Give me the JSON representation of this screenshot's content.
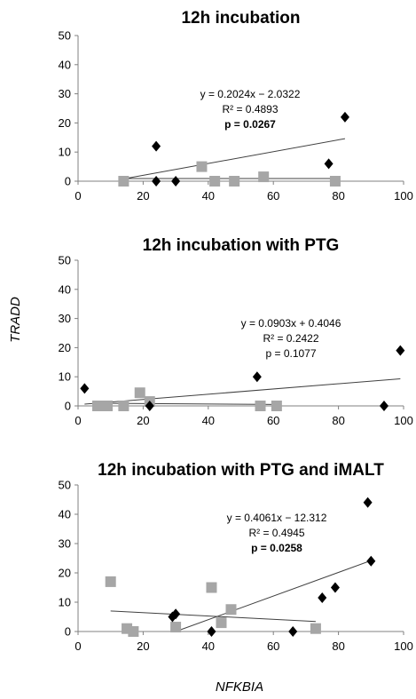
{
  "y_axis_label": "TRADD",
  "x_axis_label": "NFKBIA",
  "colors": {
    "black_series": "#000000",
    "gray_series": "#a6a6a6",
    "trendline": "#404040"
  },
  "chart_data": [
    {
      "type": "scatter",
      "title": "12h incubation",
      "xlim": [
        0,
        100
      ],
      "ylim": [
        0,
        50
      ],
      "xticks": [
        "0",
        "20",
        "40",
        "60",
        "80",
        "100"
      ],
      "yticks": [
        "0",
        "10",
        "20",
        "30",
        "40",
        "50"
      ],
      "series": [
        {
          "marker": "diamond",
          "color": "#000000",
          "x": [
            24,
            24,
            30,
            77,
            82
          ],
          "y": [
            12,
            0,
            0,
            6,
            22
          ]
        },
        {
          "marker": "square",
          "color": "#a6a6a6",
          "x": [
            14,
            38,
            42,
            48,
            57,
            79
          ],
          "y": [
            0,
            5,
            0,
            0,
            1.5,
            0
          ]
        }
      ],
      "trendlines": [
        {
          "x": [
            14,
            82
          ],
          "y": [
            0.8,
            14.6
          ]
        },
        {
          "x": [
            14,
            79
          ],
          "y": [
            0.9,
            0.9
          ]
        }
      ],
      "annotation": {
        "equation": "y = 0.2024x − 2.0322",
        "r2": "R² = 0.4893",
        "p": "p = 0.0267",
        "p_bold": true
      }
    },
    {
      "type": "scatter",
      "title": "12h incubation with PTG",
      "xlim": [
        0,
        100
      ],
      "ylim": [
        0,
        50
      ],
      "xticks": [
        "0",
        "20",
        "40",
        "60",
        "80",
        "100"
      ],
      "yticks": [
        "0",
        "10",
        "20",
        "30",
        "40",
        "50"
      ],
      "series": [
        {
          "marker": "diamond",
          "color": "#000000",
          "x": [
            2,
            22,
            55,
            94,
            99
          ],
          "y": [
            6,
            0,
            10,
            0,
            19
          ]
        },
        {
          "marker": "square",
          "color": "#a6a6a6",
          "x": [
            6,
            9,
            14,
            19,
            22,
            56,
            61
          ],
          "y": [
            0,
            0,
            0,
            4.5,
            1.5,
            0,
            0
          ]
        }
      ],
      "trendlines": [
        {
          "x": [
            2,
            99
          ],
          "y": [
            0.6,
            9.3
          ]
        },
        {
          "x": [
            6,
            61
          ],
          "y": [
            0.9,
            0.5
          ]
        }
      ],
      "annotation": {
        "equation": "y = 0.0903x + 0.4046",
        "r2": "R² = 0.2422",
        "p": "p = 0.1077",
        "p_bold": false
      }
    },
    {
      "type": "scatter",
      "title": "12h incubation with PTG and iMALT",
      "xlim": [
        0,
        100
      ],
      "ylim": [
        0,
        50
      ],
      "xticks": [
        "0",
        "20",
        "40",
        "60",
        "80",
        "100"
      ],
      "yticks": [
        "0",
        "10",
        "20",
        "30",
        "40",
        "50"
      ],
      "series": [
        {
          "marker": "diamond",
          "color": "#000000",
          "x": [
            29,
            30,
            41,
            66,
            75,
            79,
            89,
            90
          ],
          "y": [
            5,
            6,
            0,
            0,
            11.5,
            15,
            44,
            24
          ]
        },
        {
          "marker": "square",
          "color": "#a6a6a6",
          "x": [
            10,
            15,
            17,
            30,
            41,
            44,
            47,
            73
          ],
          "y": [
            17,
            1,
            0,
            1.5,
            15,
            3,
            7.5,
            1
          ]
        }
      ],
      "trendlines": [
        {
          "x": [
            30,
            90
          ],
          "y": [
            0,
            24.2
          ]
        },
        {
          "x": [
            10,
            73
          ],
          "y": [
            7,
            3.4
          ]
        }
      ],
      "annotation": {
        "equation": "y = 0.4061x − 12.312",
        "r2": "R² = 0.4945",
        "p": "p = 0.0258",
        "p_bold": true
      }
    }
  ]
}
